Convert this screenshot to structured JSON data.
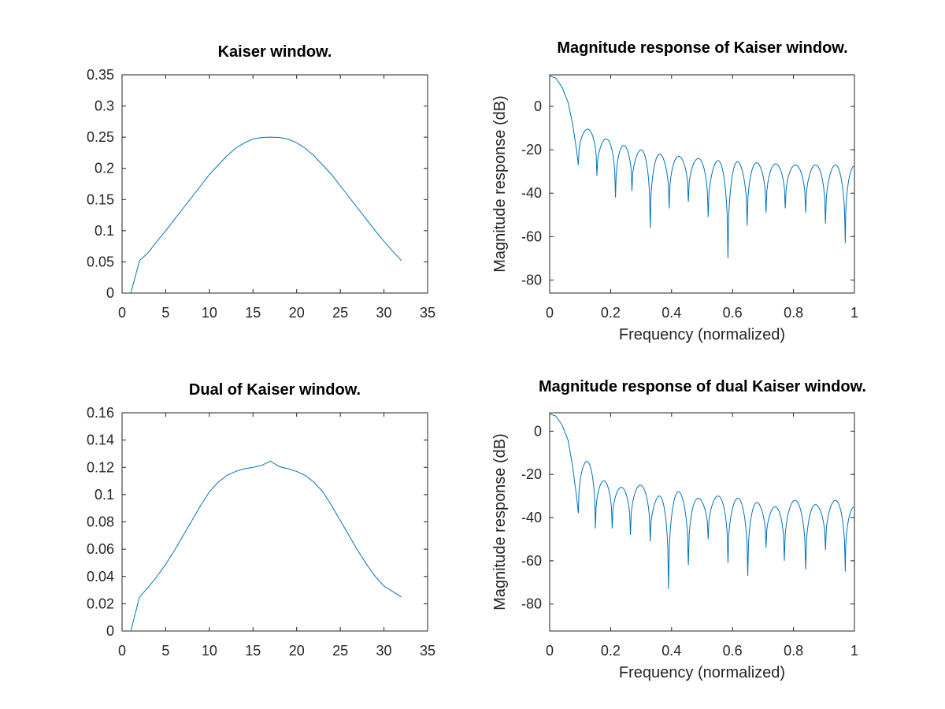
{
  "colors": {
    "series": "#0072bd",
    "axes": "#262626",
    "background": "#ffffff"
  },
  "chart_data": [
    {
      "type": "line",
      "title": "Kaiser window.",
      "xlabel": "",
      "ylabel": "",
      "xlim": [
        0,
        35
      ],
      "ylim": [
        0,
        0.35
      ],
      "xticks": [
        0,
        5,
        10,
        15,
        20,
        25,
        30,
        35
      ],
      "xtick_labels": [
        "0",
        "5",
        "10",
        "15",
        "20",
        "25",
        "30",
        "35"
      ],
      "yticks": [
        0,
        0.05,
        0.1,
        0.15,
        0.2,
        0.25,
        0.3,
        0.35
      ],
      "ytick_labels": [
        "0",
        "0.05",
        "0.1",
        "0.15",
        "0.2",
        "0.25",
        "0.3",
        "0.35"
      ],
      "grid": false,
      "series": [
        {
          "x": [
            1,
            2,
            3,
            4,
            5,
            6,
            7,
            8,
            9,
            10,
            11,
            12,
            13,
            14,
            15,
            16,
            17,
            18,
            19,
            20,
            21,
            22,
            23,
            24,
            25,
            26,
            27,
            28,
            29,
            30,
            31,
            32
          ],
          "y": [
            0,
            0.052,
            0.065,
            0.083,
            0.1,
            0.118,
            0.136,
            0.154,
            0.172,
            0.19,
            0.205,
            0.22,
            0.232,
            0.241,
            0.247,
            0.2495,
            0.25,
            0.2495,
            0.247,
            0.241,
            0.232,
            0.22,
            0.205,
            0.19,
            0.172,
            0.154,
            0.136,
            0.118,
            0.1,
            0.083,
            0.067,
            0.052
          ]
        }
      ]
    },
    {
      "type": "line",
      "title": "Magnitude response of Kaiser window.",
      "xlabel": "Frequency (normalized)",
      "ylabel": "Magnitude response (dB)",
      "xlim": [
        0,
        1
      ],
      "ylim": [
        -86,
        14.5
      ],
      "xticks": [
        0,
        0.2,
        0.4,
        0.6,
        0.8,
        1
      ],
      "xtick_labels": [
        "0",
        "0.2",
        "0.4",
        "0.6",
        "0.8",
        "1"
      ],
      "yticks": [
        -80,
        -60,
        -40,
        -20,
        0
      ],
      "ytick_labels": [
        "-80",
        "-60",
        "-40",
        "-20",
        "0"
      ],
      "grid": false,
      "main_lobe": [
        [
          0,
          14
        ],
        [
          0.02,
          13
        ],
        [
          0.04,
          9
        ],
        [
          0.06,
          2
        ],
        [
          0.075,
          -8
        ],
        [
          0.088,
          -20
        ],
        [
          0.094,
          -27
        ]
      ],
      "sidelobes": [
        {
          "x0": 0.094,
          "x1": 0.155,
          "peak": -10.5,
          "null0": -27,
          "null1": -32
        },
        {
          "x0": 0.155,
          "x1": 0.216,
          "peak": -15,
          "null0": -32,
          "null1": -42
        },
        {
          "x0": 0.216,
          "x1": 0.27,
          "peak": -18,
          "null0": -42,
          "null1": -39
        },
        {
          "x0": 0.27,
          "x1": 0.33,
          "peak": -20,
          "null0": -39,
          "null1": -56
        },
        {
          "x0": 0.33,
          "x1": 0.392,
          "peak": -22,
          "null0": -56,
          "null1": -47
        },
        {
          "x0": 0.392,
          "x1": 0.455,
          "peak": -23,
          "null0": -47,
          "null1": -44
        },
        {
          "x0": 0.455,
          "x1": 0.52,
          "peak": -24,
          "null0": -44,
          "null1": -51
        },
        {
          "x0": 0.52,
          "x1": 0.585,
          "peak": -25,
          "null0": -51,
          "null1": -70
        },
        {
          "x0": 0.585,
          "x1": 0.648,
          "peak": -25.5,
          "null0": -70,
          "null1": -55
        },
        {
          "x0": 0.648,
          "x1": 0.71,
          "peak": -26,
          "null0": -55,
          "null1": -49
        },
        {
          "x0": 0.71,
          "x1": 0.773,
          "peak": -26.5,
          "null0": -49,
          "null1": -47
        },
        {
          "x0": 0.773,
          "x1": 0.84,
          "peak": -27,
          "null0": -47,
          "null1": -49
        },
        {
          "x0": 0.84,
          "x1": 0.905,
          "peak": -27,
          "null0": -49,
          "null1": -54
        },
        {
          "x0": 0.905,
          "x1": 0.97,
          "peak": -27,
          "null0": -54,
          "null1": -63
        },
        {
          "x0": 0.97,
          "x1": 1.0,
          "peak": -27.5,
          "null0": -63,
          "null1": -27.5,
          "half": true
        }
      ]
    },
    {
      "type": "line",
      "title": "Dual of Kaiser window.",
      "xlabel": "",
      "ylabel": "",
      "xlim": [
        0,
        35
      ],
      "ylim": [
        0,
        0.16
      ],
      "xticks": [
        0,
        5,
        10,
        15,
        20,
        25,
        30,
        35
      ],
      "xtick_labels": [
        "0",
        "5",
        "10",
        "15",
        "20",
        "25",
        "30",
        "35"
      ],
      "yticks": [
        0,
        0.02,
        0.04,
        0.06,
        0.08,
        0.1,
        0.12,
        0.14,
        0.16
      ],
      "ytick_labels": [
        "0",
        "0.02",
        "0.04",
        "0.06",
        "0.08",
        "0.1",
        "0.12",
        "0.14",
        "0.16"
      ],
      "grid": false,
      "series": [
        {
          "x": [
            1,
            2,
            3,
            4,
            5,
            6,
            7,
            8,
            9,
            10,
            11,
            12,
            13,
            14,
            15,
            16,
            17,
            18,
            19,
            20,
            21,
            22,
            23,
            24,
            25,
            26,
            27,
            28,
            29,
            30,
            31,
            32
          ],
          "y": [
            0,
            0.025,
            0.032,
            0.04,
            0.049,
            0.059,
            0.07,
            0.081,
            0.092,
            0.102,
            0.109,
            0.114,
            0.117,
            0.119,
            0.12,
            0.1215,
            0.1245,
            0.1205,
            0.119,
            0.117,
            0.114,
            0.109,
            0.102,
            0.092,
            0.081,
            0.07,
            0.059,
            0.049,
            0.04,
            0.033,
            0.029,
            0.025
          ]
        }
      ]
    },
    {
      "type": "line",
      "title": "Magnitude response of dual Kaiser window.",
      "xlabel": "Frequency (normalized)",
      "ylabel": "Magnitude response (dB)",
      "xlim": [
        0,
        1
      ],
      "ylim": [
        -92.5,
        8.5
      ],
      "xticks": [
        0,
        0.2,
        0.4,
        0.6,
        0.8,
        1
      ],
      "xtick_labels": [
        "0",
        "0.2",
        "0.4",
        "0.6",
        "0.8",
        "1"
      ],
      "yticks": [
        -80,
        -60,
        -40,
        -20,
        0
      ],
      "ytick_labels": [
        "-80",
        "-60",
        "-40",
        "-20",
        "0"
      ],
      "grid": false,
      "main_lobe": [
        [
          0,
          8
        ],
        [
          0.02,
          7
        ],
        [
          0.04,
          3
        ],
        [
          0.06,
          -4
        ],
        [
          0.075,
          -16
        ],
        [
          0.088,
          -30
        ],
        [
          0.094,
          -38
        ]
      ],
      "sidelobes": [
        {
          "x0": 0.094,
          "x1": 0.15,
          "peak": -14,
          "null0": -38,
          "null1": -45
        },
        {
          "x0": 0.15,
          "x1": 0.205,
          "peak": -23,
          "null0": -45,
          "null1": -45
        },
        {
          "x0": 0.205,
          "x1": 0.265,
          "peak": -26,
          "null0": -45,
          "null1": -48
        },
        {
          "x0": 0.265,
          "x1": 0.33,
          "peak": -25,
          "null0": -48,
          "null1": -51
        },
        {
          "x0": 0.33,
          "x1": 0.39,
          "peak": -30,
          "null0": -51,
          "null1": -73
        },
        {
          "x0": 0.39,
          "x1": 0.455,
          "peak": -28,
          "null0": -73,
          "null1": -62
        },
        {
          "x0": 0.455,
          "x1": 0.52,
          "peak": -31,
          "null0": -62,
          "null1": -50
        },
        {
          "x0": 0.52,
          "x1": 0.585,
          "peak": -30,
          "null0": -50,
          "null1": -61
        },
        {
          "x0": 0.585,
          "x1": 0.65,
          "peak": -31,
          "null0": -61,
          "null1": -67
        },
        {
          "x0": 0.65,
          "x1": 0.71,
          "peak": -33,
          "null0": -67,
          "null1": -54
        },
        {
          "x0": 0.71,
          "x1": 0.77,
          "peak": -35,
          "null0": -54,
          "null1": -60
        },
        {
          "x0": 0.77,
          "x1": 0.84,
          "peak": -32,
          "null0": -60,
          "null1": -64
        },
        {
          "x0": 0.84,
          "x1": 0.905,
          "peak": -34,
          "null0": -64,
          "null1": -55
        },
        {
          "x0": 0.905,
          "x1": 0.97,
          "peak": -32,
          "null0": -55,
          "null1": -65
        },
        {
          "x0": 0.97,
          "x1": 1.0,
          "peak": -35,
          "null0": -65,
          "null1": -35,
          "half": true
        }
      ]
    }
  ]
}
